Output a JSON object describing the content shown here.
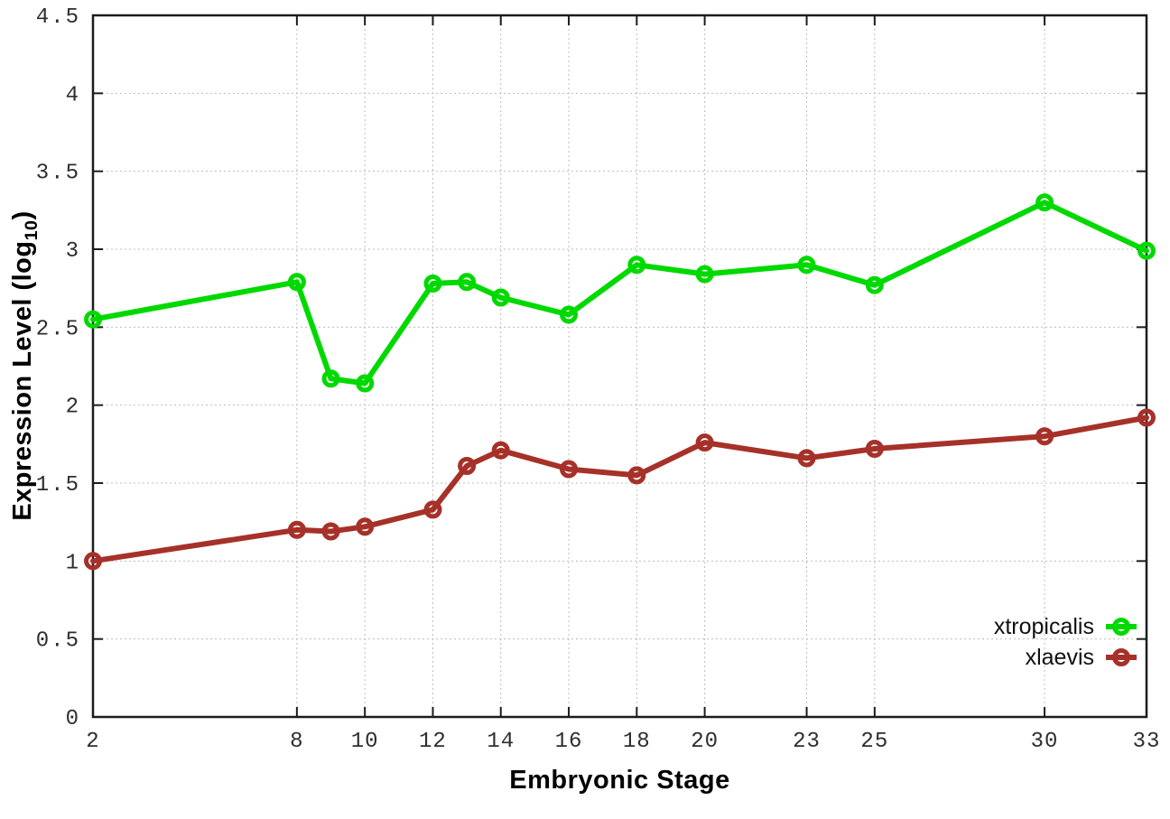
{
  "chart_data": {
    "type": "line",
    "title": "",
    "xlabel": "Embryonic Stage",
    "ylabel_prefix": "Expression Level (log",
    "ylabel_subscript": "10",
    "ylabel_suffix": ")",
    "xlim": [
      2,
      33
    ],
    "ylim": [
      0,
      4.5
    ],
    "x_ticks": [
      2,
      8,
      10,
      12,
      14,
      16,
      18,
      20,
      23,
      25,
      30,
      33
    ],
    "y_ticks": [
      0,
      0.5,
      1,
      1.5,
      2,
      2.5,
      3,
      3.5,
      4,
      4.5
    ],
    "y_tick_labels": [
      "0",
      "0.5",
      "1",
      "1.5",
      "2",
      "2.5",
      "3",
      "3.5",
      "4",
      "4.5"
    ],
    "grid": true,
    "grid_style": "dotted",
    "legend_position": "bottom-right-inside",
    "marker": "open-circle",
    "x": [
      2,
      8,
      9,
      10,
      12,
      13,
      14,
      16,
      18,
      20,
      23,
      25,
      30,
      33
    ],
    "series": [
      {
        "name": "xtropicalis",
        "color": "#00d900",
        "values": [
          2.55,
          2.79,
          2.17,
          2.14,
          2.78,
          2.79,
          2.69,
          2.58,
          2.9,
          2.84,
          2.9,
          2.77,
          3.3,
          2.99
        ]
      },
      {
        "name": "xlaevis",
        "color": "#a63129",
        "values": [
          1.0,
          1.2,
          1.19,
          1.22,
          1.33,
          1.61,
          1.71,
          1.59,
          1.55,
          1.76,
          1.66,
          1.72,
          1.8,
          1.92
        ]
      }
    ]
  },
  "colors": {
    "background": "#ffffff",
    "axis": "#1c1c1c",
    "grid": "#bdbdbd",
    "tick_label": "#2e2e2e"
  }
}
